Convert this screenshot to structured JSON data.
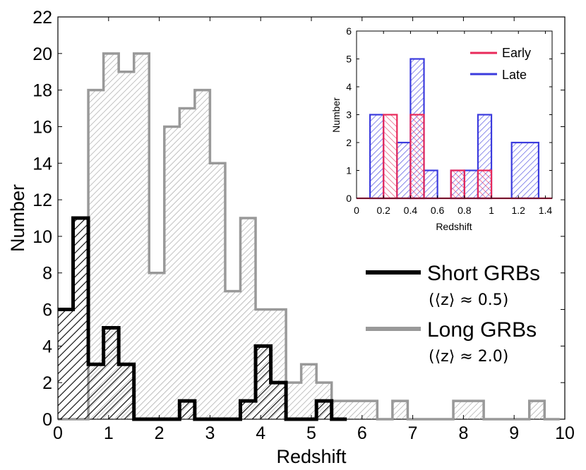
{
  "chart_data": [
    {
      "type": "histogram",
      "title": "",
      "xlabel": "Redshift",
      "ylabel": "Number",
      "xlim": [
        0,
        10
      ],
      "ylim": [
        0,
        22
      ],
      "xticks": [
        "0",
        "1",
        "2",
        "3",
        "4",
        "5",
        "6",
        "7",
        "8",
        "9",
        "10"
      ],
      "yticks": [
        "0",
        "2",
        "4",
        "6",
        "8",
        "10",
        "12",
        "14",
        "16",
        "18",
        "20",
        "22"
      ],
      "bin_width": 0.3,
      "series": [
        {
          "name": "Long GRBs",
          "note": "(⟨z⟩ ≈ 2.0)",
          "color": "#999999",
          "bin_starts": [
            0,
            0.3,
            0.6,
            0.9,
            1.2,
            1.5,
            1.8,
            2.1,
            2.4,
            2.7,
            3.0,
            3.3,
            3.6,
            3.9,
            4.2,
            4.5,
            4.8,
            5.1,
            5.4,
            5.7,
            6.0,
            6.3,
            6.6,
            6.9,
            7.2,
            7.5,
            7.8,
            8.1,
            8.4,
            8.7,
            9.0,
            9.3,
            9.6
          ],
          "values": [
            0,
            0,
            18,
            20,
            19,
            20,
            8,
            16,
            17,
            18,
            14,
            7,
            11,
            6,
            6,
            2,
            3,
            2,
            1,
            1,
            1,
            0,
            1,
            0,
            0,
            0,
            1,
            1,
            0,
            0,
            0,
            1,
            0
          ]
        },
        {
          "name": "Short GRBs",
          "note": "(⟨z⟩ ≈ 0.5)",
          "color": "#000000",
          "bin_starts": [
            0,
            0.3,
            0.6,
            0.9,
            1.2,
            1.5,
            1.8,
            2.1,
            2.4,
            2.7,
            3.0,
            3.3,
            3.6,
            3.9,
            4.2,
            4.5,
            4.8,
            5.1,
            5.4
          ],
          "values": [
            6,
            11,
            3,
            5,
            3,
            0,
            0,
            0,
            1,
            0,
            0,
            0,
            1,
            4,
            2,
            0,
            0,
            1,
            0
          ]
        }
      ]
    },
    {
      "type": "histogram",
      "title": "",
      "xlabel": "Redshift",
      "ylabel": "Number",
      "xlim": [
        0,
        1.45
      ],
      "ylim": [
        0,
        6
      ],
      "xticks": [
        "0",
        "0.2",
        "0.4",
        "0.6",
        "0.8",
        "1",
        "1.2",
        "1.4"
      ],
      "yticks": [
        "0",
        "1",
        "2",
        "3",
        "4",
        "5",
        "6"
      ],
      "series": [
        {
          "name": "Late",
          "color": "#3b3bde",
          "bins": [
            [
              0.1,
              0.2,
              3
            ],
            [
              0.3,
              0.4,
              2
            ],
            [
              0.4,
              0.5,
              5
            ],
            [
              0.5,
              0.6,
              1
            ],
            [
              0.7,
              0.8,
              1
            ],
            [
              0.8,
              0.9,
              1
            ],
            [
              0.9,
              1.0,
              3
            ],
            [
              1.15,
              1.35,
              2
            ]
          ]
        },
        {
          "name": "Early",
          "color": "#e8295a",
          "bins": [
            [
              0.2,
              0.3,
              3
            ],
            [
              0.4,
              0.5,
              3
            ],
            [
              0.7,
              0.8,
              1
            ],
            [
              0.9,
              1.0,
              1
            ]
          ]
        }
      ]
    }
  ]
}
